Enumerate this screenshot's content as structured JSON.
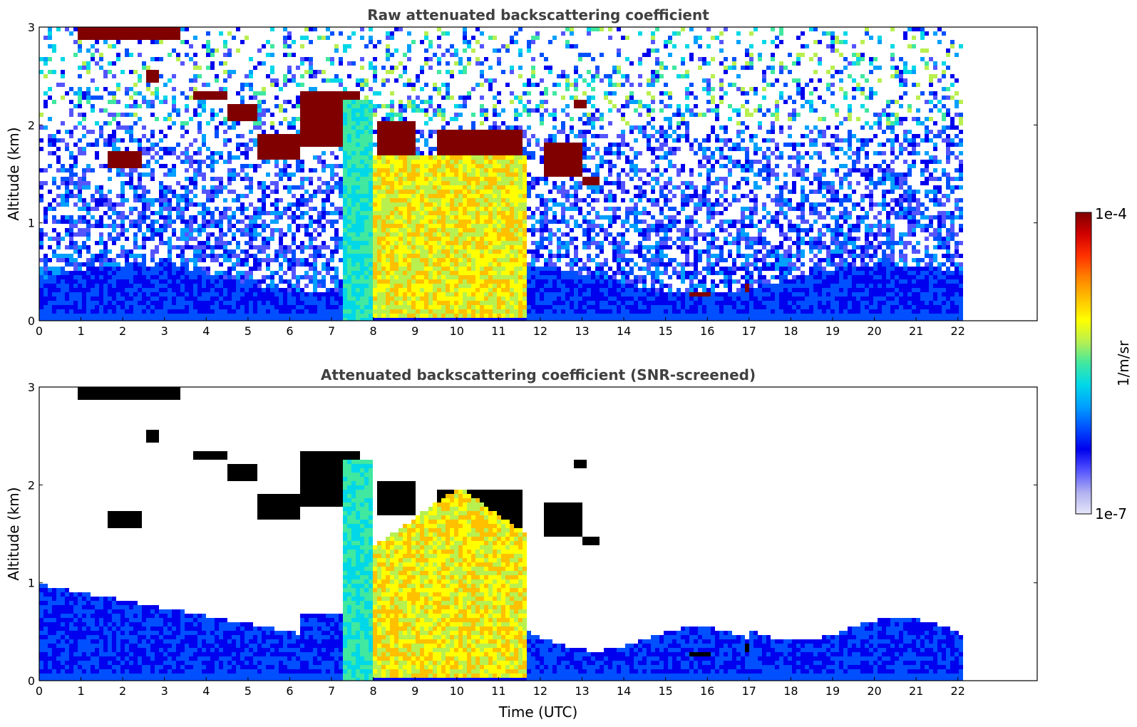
{
  "chart_data": [
    {
      "type": "heatmap",
      "title": "Raw attenuated backscattering coefficient",
      "xlabel": "",
      "ylabel": "Altitude (km)",
      "xlim": [
        0,
        23.9
      ],
      "ylim": [
        0,
        3
      ],
      "x_ticks": [
        "0",
        "1",
        "2",
        "3",
        "4",
        "5",
        "6",
        "7",
        "8",
        "9",
        "10",
        "11",
        "12",
        "13",
        "14",
        "15",
        "16",
        "17",
        "18",
        "19",
        "20",
        "21",
        "22"
      ],
      "y_ticks": [
        "0",
        "1",
        "2",
        "3"
      ],
      "data_end_time": 22.1,
      "screened": false,
      "features": [
        {
          "kind": "aerosol_layer",
          "t_start": 0,
          "t_end": 22.1,
          "top_km": 0.5
        },
        {
          "kind": "precipitation_band",
          "t_start": 7.9,
          "t_end": 11.6,
          "top_km": 1.6
        },
        {
          "kind": "cloud_layer",
          "t_start": 3.6,
          "t_end": 7.6,
          "base_km": 1.65,
          "top_km": 2.35
        },
        {
          "kind": "cloud_layer",
          "t_start": 12.0,
          "t_end": 13.5,
          "base_km": 1.4,
          "top_km": 1.85
        },
        {
          "kind": "cloud_layer",
          "t_start": 15.5,
          "t_end": 17.0,
          "base_km": 0.25,
          "top_km": 0.4
        }
      ]
    },
    {
      "type": "heatmap",
      "title": "Attenuated backscattering coefficient (SNR-screened)",
      "xlabel": "Time (UTC)",
      "ylabel": "Altitude (km)",
      "xlim": [
        0,
        23.9
      ],
      "ylim": [
        0,
        3
      ],
      "x_ticks": [
        "0",
        "1",
        "2",
        "3",
        "4",
        "5",
        "6",
        "7",
        "8",
        "9",
        "10",
        "11",
        "12",
        "13",
        "14",
        "15",
        "16",
        "17",
        "18",
        "19",
        "20",
        "21",
        "22"
      ],
      "y_ticks": [
        "0",
        "1",
        "2",
        "3"
      ],
      "data_end_time": 22.1,
      "screened": true,
      "features": [
        {
          "kind": "aerosol_layer",
          "t_start": 0,
          "t_end": 6.2,
          "top_km": 1.0
        },
        {
          "kind": "precipitation_band",
          "t_start": 7.9,
          "t_end": 11.6,
          "top_km": 2.0
        },
        {
          "kind": "aerosol_layer",
          "t_start": 12.0,
          "t_end": 22.1,
          "top_km": 0.6
        }
      ]
    }
  ],
  "colorbar": {
    "label": "1/m/sr",
    "max_label": "1e-4",
    "min_label": "1e-7",
    "scale": "log",
    "vmin": 1e-07,
    "vmax": 0.0001,
    "colormap": [
      "#e6e6fa",
      "#b0b0f0",
      "#5555ff",
      "#0000ee",
      "#0050ff",
      "#00a0ff",
      "#00d8e8",
      "#40e8a0",
      "#b8f050",
      "#ffff00",
      "#ffc000",
      "#ff8000",
      "#ff3000",
      "#d00000",
      "#800000"
    ]
  }
}
